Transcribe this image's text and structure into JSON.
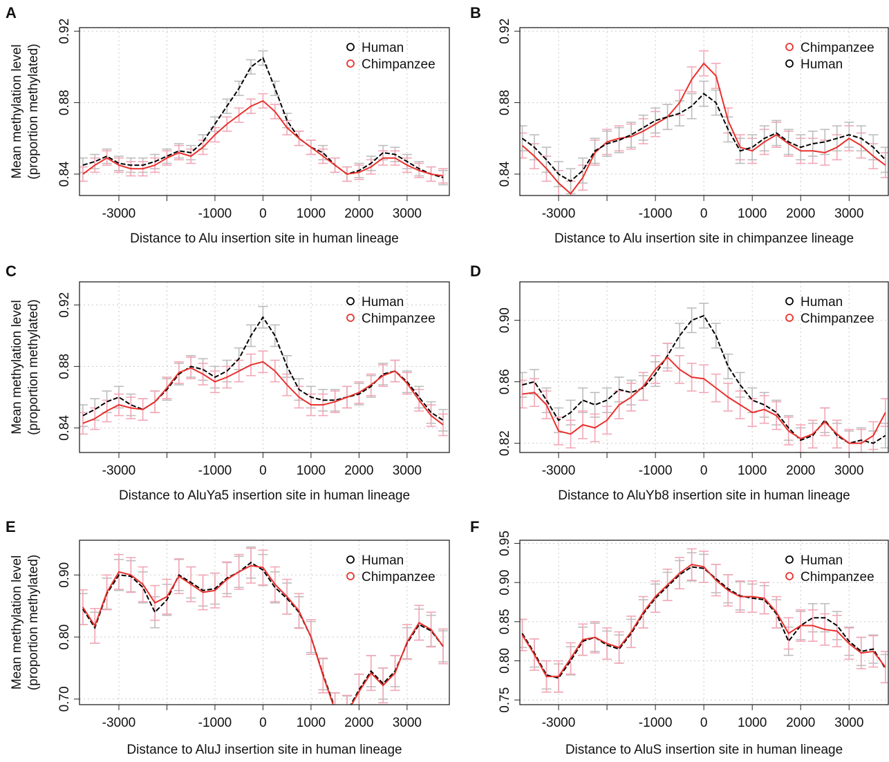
{
  "chart_data": [
    {
      "type": "line",
      "panel": "A",
      "x_label": "Distance to Alu insertion site in human lineage",
      "y_label": [
        "Mean methylation level",
        "(proportion methylated)"
      ],
      "x": [
        -3750,
        -3500,
        -3250,
        -3000,
        -2750,
        -2500,
        -2250,
        -2000,
        -1750,
        -1500,
        -1250,
        -1000,
        -750,
        -500,
        -250,
        0,
        250,
        500,
        750,
        1000,
        1250,
        1500,
        1750,
        2000,
        2250,
        2500,
        2750,
        3000,
        3250,
        3500,
        3750
      ],
      "xlim": [
        -3820,
        3880
      ],
      "xticks": [
        -3000,
        {
          "value": -2000,
          "label": null
        },
        -1000,
        0,
        1000,
        2000,
        3000
      ],
      "ylim": [
        0.828,
        0.922
      ],
      "yticks": [
        0.84,
        0.88,
        0.92
      ],
      "grid": true,
      "legend": "upper right",
      "series": [
        {
          "name": "Human",
          "color": "#000000",
          "error_color": "#bdbdbd",
          "error": 0.004,
          "values": [
            0.845,
            0.847,
            0.85,
            0.846,
            0.845,
            0.845,
            0.847,
            0.85,
            0.853,
            0.852,
            0.858,
            0.868,
            0.878,
            0.888,
            0.9,
            0.905,
            0.888,
            0.87,
            0.86,
            0.855,
            0.852,
            0.845,
            0.84,
            0.842,
            0.846,
            0.852,
            0.851,
            0.847,
            0.843,
            0.84,
            0.838
          ]
        },
        {
          "name": "Chimpanzee",
          "color": "#e8302c",
          "error_color": "#f2a7b6",
          "error": 0.004,
          "values": [
            0.84,
            0.845,
            0.849,
            0.845,
            0.843,
            0.843,
            0.845,
            0.849,
            0.852,
            0.85,
            0.855,
            0.862,
            0.868,
            0.873,
            0.878,
            0.881,
            0.875,
            0.866,
            0.86,
            0.855,
            0.85,
            0.845,
            0.84,
            0.841,
            0.844,
            0.849,
            0.849,
            0.845,
            0.842,
            0.84,
            0.839
          ]
        }
      ]
    },
    {
      "type": "line",
      "panel": "B",
      "x_label": "Distance to Alu insertion site in chimpanzee lineage",
      "x": [
        -3750,
        -3500,
        -3250,
        -3000,
        -2750,
        -2500,
        -2250,
        -2000,
        -1750,
        -1500,
        -1250,
        -1000,
        -750,
        -500,
        -250,
        0,
        250,
        500,
        750,
        1000,
        1250,
        1500,
        1750,
        2000,
        2250,
        2500,
        2750,
        3000,
        3250,
        3500,
        3750
      ],
      "xlim": [
        -3800,
        3810
      ],
      "xticks": [
        -3000,
        {
          "value": -2000,
          "label": null
        },
        -1000,
        0,
        1000,
        2000,
        3000
      ],
      "ylim": [
        0.828,
        0.922
      ],
      "yticks": [
        0.84,
        0.88,
        0.92
      ],
      "grid": true,
      "legend": "upper right",
      "series": [
        {
          "name": "Chimpanzee",
          "color": "#e8302c",
          "error_color": "#f2a7b6",
          "error": 0.007,
          "values": [
            0.856,
            0.85,
            0.843,
            0.835,
            0.829,
            0.838,
            0.852,
            0.858,
            0.86,
            0.861,
            0.864,
            0.868,
            0.872,
            0.88,
            0.893,
            0.902,
            0.895,
            0.87,
            0.855,
            0.853,
            0.858,
            0.862,
            0.857,
            0.853,
            0.853,
            0.852,
            0.855,
            0.86,
            0.856,
            0.85,
            0.845
          ]
        },
        {
          "name": "Human",
          "color": "#000000",
          "error_color": "#bdbdbd",
          "error": 0.007,
          "values": [
            0.86,
            0.855,
            0.848,
            0.84,
            0.836,
            0.842,
            0.853,
            0.857,
            0.859,
            0.862,
            0.866,
            0.87,
            0.872,
            0.874,
            0.878,
            0.885,
            0.88,
            0.865,
            0.853,
            0.855,
            0.86,
            0.863,
            0.858,
            0.855,
            0.857,
            0.858,
            0.86,
            0.862,
            0.86,
            0.855,
            0.848
          ]
        }
      ]
    },
    {
      "type": "line",
      "panel": "C",
      "x_label": "Distance to AluYa5 insertion site in human lineage",
      "y_label": [
        "Mean methylation level",
        "(proportion methylated)"
      ],
      "x": [
        -3750,
        -3500,
        -3250,
        -3000,
        -2750,
        -2500,
        -2250,
        -2000,
        -1750,
        -1500,
        -1250,
        -1000,
        -750,
        -500,
        -250,
        0,
        250,
        500,
        750,
        1000,
        1250,
        1500,
        1750,
        2000,
        2250,
        2500,
        2750,
        3000,
        3250,
        3500,
        3750
      ],
      "xlim": [
        -3820,
        3880
      ],
      "xticks": [
        -3000,
        {
          "value": -2000,
          "label": null
        },
        -1000,
        0,
        1000,
        2000,
        3000
      ],
      "ylim": [
        0.824,
        0.935
      ],
      "yticks": [
        0.84,
        0.88,
        0.92
      ],
      "grid": true,
      "legend": "upper right",
      "series": [
        {
          "name": "Human",
          "color": "#000000",
          "error_color": "#bdbdbd",
          "error": 0.007,
          "values": [
            0.848,
            0.852,
            0.857,
            0.86,
            0.855,
            0.852,
            0.857,
            0.865,
            0.875,
            0.88,
            0.878,
            0.873,
            0.877,
            0.885,
            0.9,
            0.912,
            0.9,
            0.88,
            0.865,
            0.86,
            0.858,
            0.858,
            0.86,
            0.862,
            0.867,
            0.875,
            0.877,
            0.87,
            0.86,
            0.85,
            0.845
          ]
        },
        {
          "name": "Chimpanzee",
          "color": "#e8302c",
          "error_color": "#f2a7b6",
          "error": 0.007,
          "values": [
            0.843,
            0.846,
            0.851,
            0.855,
            0.853,
            0.852,
            0.857,
            0.866,
            0.876,
            0.879,
            0.875,
            0.87,
            0.873,
            0.877,
            0.881,
            0.883,
            0.877,
            0.868,
            0.86,
            0.855,
            0.855,
            0.857,
            0.86,
            0.863,
            0.868,
            0.874,
            0.877,
            0.869,
            0.858,
            0.848,
            0.842
          ]
        }
      ]
    },
    {
      "type": "line",
      "panel": "D",
      "x_label": "Distance to AluYb8 insertion site in human lineage",
      "x": [
        -3750,
        -3500,
        -3250,
        -3000,
        -2750,
        -2500,
        -2250,
        -2000,
        -1750,
        -1500,
        -1250,
        -1000,
        -750,
        -500,
        -250,
        0,
        250,
        500,
        750,
        1000,
        1250,
        1500,
        1750,
        2000,
        2250,
        2500,
        2750,
        3000,
        3250,
        3500,
        3750
      ],
      "xlim": [
        -3800,
        3810
      ],
      "xticks": [
        -3000,
        {
          "value": -2000,
          "label": null
        },
        -1000,
        0,
        1000,
        2000,
        3000
      ],
      "ylim": [
        0.814,
        0.925
      ],
      "yticks": [
        0.82,
        0.86,
        {
          "value": 0.9,
          "label": "0.90"
        }
      ],
      "grid": true,
      "legend": "upper right",
      "series": [
        {
          "name": "Human",
          "color": "#000000",
          "error_color": "#bdbdbd",
          "error": 0.008,
          "values": [
            0.858,
            0.86,
            0.848,
            0.835,
            0.84,
            0.848,
            0.845,
            0.848,
            0.855,
            0.853,
            0.856,
            0.865,
            0.877,
            0.89,
            0.9,
            0.903,
            0.89,
            0.87,
            0.858,
            0.848,
            0.845,
            0.84,
            0.83,
            0.822,
            0.825,
            0.835,
            0.825,
            0.82,
            0.822,
            0.82,
            0.825
          ]
        },
        {
          "name": "Chimpanzee",
          "color": "#e8302c",
          "error_color": "#f2a7b6",
          "error": 0.009,
          "values": [
            0.852,
            0.853,
            0.845,
            0.828,
            0.826,
            0.832,
            0.83,
            0.835,
            0.845,
            0.85,
            0.857,
            0.868,
            0.876,
            0.868,
            0.863,
            0.862,
            0.856,
            0.85,
            0.845,
            0.84,
            0.842,
            0.838,
            0.828,
            0.823,
            0.826,
            0.834,
            0.826,
            0.82,
            0.82,
            0.825,
            0.84
          ]
        }
      ]
    },
    {
      "type": "line",
      "panel": "E",
      "x_label": "Distance to AluJ insertion site in human lineage",
      "y_label": [
        "Mean methylation level",
        "(proportion methylated)"
      ],
      "x": [
        -3750,
        -3500,
        -3250,
        -3000,
        -2750,
        -2500,
        -2250,
        -2000,
        -1750,
        -1500,
        -1250,
        -1000,
        -750,
        -500,
        -250,
        0,
        250,
        500,
        750,
        1000,
        1250,
        1500,
        1750,
        2000,
        2250,
        2500,
        2750,
        3000,
        3250,
        3500,
        3750
      ],
      "xlim": [
        -3820,
        3880
      ],
      "xticks": [
        -3000,
        {
          "value": -2000,
          "label": null
        },
        -1000,
        0,
        1000,
        2000,
        3000
      ],
      "ylim": [
        0.691,
        0.956
      ],
      "yticks": [
        {
          "value": 0.7,
          "label": "0.70"
        },
        {
          "value": 0.8,
          "label": "0.80"
        },
        {
          "value": 0.9,
          "label": "0.90"
        }
      ],
      "grid": true,
      "legend": "upper right",
      "series": [
        {
          "name": "Human",
          "color": "#000000",
          "error_color": "#bdbdbd",
          "error": 0.025,
          "values": [
            0.845,
            0.815,
            0.87,
            0.9,
            0.898,
            0.88,
            0.84,
            0.86,
            0.9,
            0.888,
            0.875,
            0.878,
            0.895,
            0.905,
            0.92,
            0.908,
            0.88,
            0.862,
            0.84,
            0.8,
            0.74,
            0.685,
            0.68,
            0.715,
            0.745,
            0.725,
            0.745,
            0.79,
            0.82,
            0.81,
            0.785
          ]
        },
        {
          "name": "Chimpanzee",
          "color": "#e8302c",
          "error_color": "#f2a7b6",
          "error": 0.028,
          "values": [
            0.848,
            0.818,
            0.872,
            0.905,
            0.9,
            0.885,
            0.855,
            0.865,
            0.898,
            0.885,
            0.872,
            0.875,
            0.893,
            0.905,
            0.915,
            0.912,
            0.885,
            0.865,
            0.842,
            0.8,
            0.738,
            0.682,
            0.678,
            0.712,
            0.742,
            0.722,
            0.742,
            0.792,
            0.823,
            0.812,
            0.785
          ]
        }
      ]
    },
    {
      "type": "line",
      "panel": "F",
      "x_label": "Distance to AluS insertion site in human lineage",
      "x": [
        -3750,
        -3500,
        -3250,
        -3000,
        -2750,
        -2500,
        -2250,
        -2000,
        -1750,
        -1500,
        -1250,
        -1000,
        -750,
        -500,
        -250,
        0,
        250,
        500,
        750,
        1000,
        1250,
        1500,
        1750,
        2000,
        2250,
        2500,
        2750,
        3000,
        3250,
        3500,
        3750
      ],
      "xlim": [
        -3800,
        3810
      ],
      "xticks": [
        -3000,
        {
          "value": -2000,
          "label": null
        },
        -1000,
        0,
        1000,
        2000,
        3000
      ],
      "ylim": [
        0.744,
        0.954
      ],
      "yticks": [
        0.75,
        {
          "value": 0.8,
          "label": "0.80"
        },
        0.85,
        {
          "value": 0.9,
          "label": "0.90"
        },
        0.95
      ],
      "grid": true,
      "legend": "upper right",
      "series": [
        {
          "name": "Human",
          "color": "#000000",
          "error_color": "#bdbdbd",
          "error": 0.018,
          "values": [
            0.835,
            0.81,
            0.782,
            0.778,
            0.8,
            0.825,
            0.83,
            0.82,
            0.815,
            0.835,
            0.86,
            0.88,
            0.895,
            0.91,
            0.92,
            0.918,
            0.905,
            0.892,
            0.883,
            0.88,
            0.878,
            0.86,
            0.825,
            0.845,
            0.855,
            0.855,
            0.845,
            0.825,
            0.812,
            0.815,
            0.79
          ]
        },
        {
          "name": "Chimpanzee",
          "color": "#e8302c",
          "error_color": "#f2a7b6",
          "error": 0.02,
          "values": [
            0.833,
            0.808,
            0.78,
            0.78,
            0.803,
            0.827,
            0.83,
            0.822,
            0.817,
            0.837,
            0.862,
            0.882,
            0.897,
            0.912,
            0.923,
            0.92,
            0.903,
            0.89,
            0.882,
            0.882,
            0.88,
            0.862,
            0.835,
            0.845,
            0.845,
            0.84,
            0.838,
            0.822,
            0.81,
            0.812,
            0.792
          ]
        }
      ]
    }
  ]
}
